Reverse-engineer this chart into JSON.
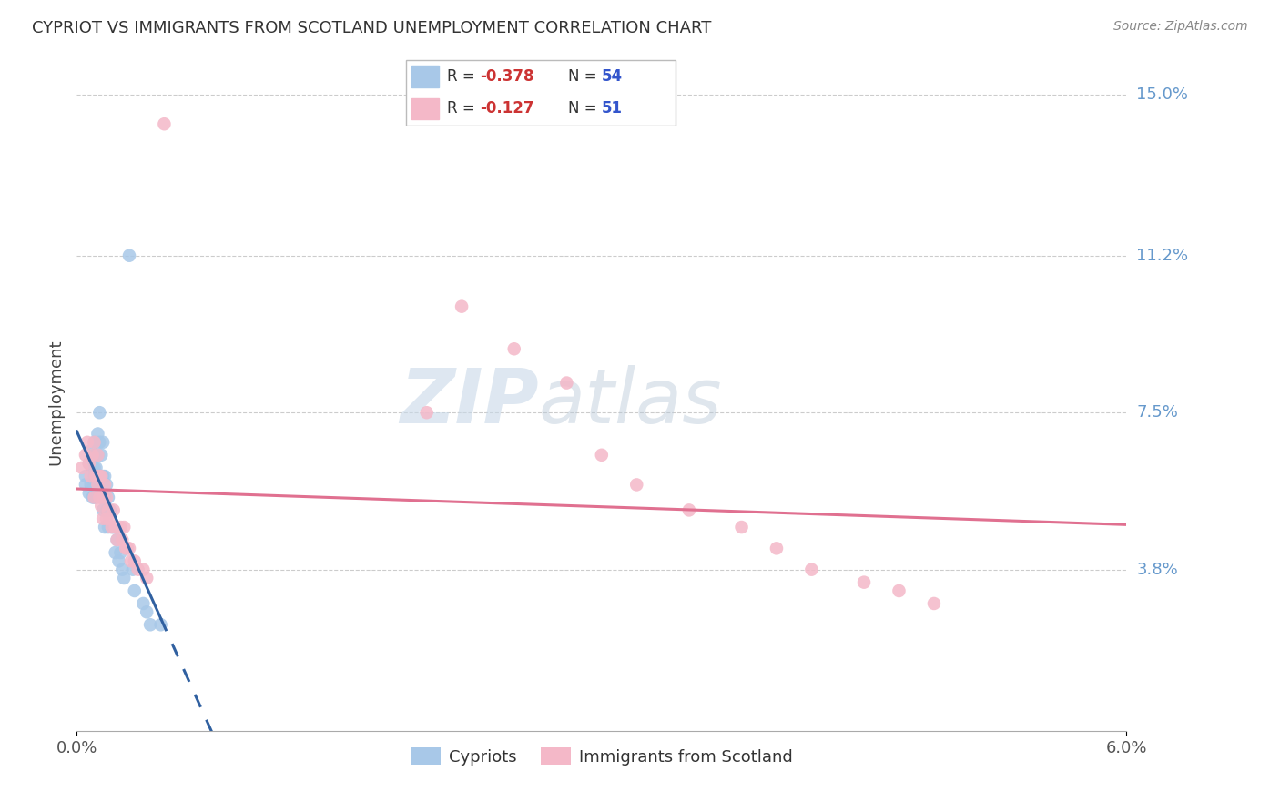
{
  "title": "CYPRIOT VS IMMIGRANTS FROM SCOTLAND UNEMPLOYMENT CORRELATION CHART",
  "source": "Source: ZipAtlas.com",
  "ylabel": "Unemployment",
  "xlim": [
    0.0,
    0.06
  ],
  "ylim": [
    0.0,
    0.155
  ],
  "ytick_labels_right": [
    "3.8%",
    "7.5%",
    "11.2%",
    "15.0%"
  ],
  "ytick_vals_right": [
    0.038,
    0.075,
    0.112,
    0.15
  ],
  "legend_r1": "-0.378",
  "legend_n1": "54",
  "legend_r2": "-0.127",
  "legend_n2": "51",
  "color_cypriot": "#a8c8e8",
  "color_scotland": "#f4b8c8",
  "color_line_cypriot": "#3060a0",
  "color_line_scotland": "#e07090",
  "watermark_zip": "ZIP",
  "watermark_atlas": "atlas",
  "cypriot_x": [
    0.0005,
    0.0005,
    0.0007,
    0.0007,
    0.0008,
    0.0008,
    0.0009,
    0.0009,
    0.001,
    0.001,
    0.001,
    0.001,
    0.001,
    0.001,
    0.0011,
    0.0011,
    0.0011,
    0.0011,
    0.0012,
    0.0012,
    0.0012,
    0.0012,
    0.0013,
    0.0013,
    0.0013,
    0.0014,
    0.0014,
    0.0014,
    0.0015,
    0.0015,
    0.0015,
    0.0016,
    0.0016,
    0.0016,
    0.0017,
    0.0017,
    0.0018,
    0.0018,
    0.0019,
    0.002,
    0.0021,
    0.0022,
    0.0023,
    0.0024,
    0.0025,
    0.0026,
    0.0027,
    0.003,
    0.0032,
    0.0033,
    0.0038,
    0.004,
    0.0042,
    0.0048
  ],
  "cypriot_y": [
    0.06,
    0.058,
    0.063,
    0.056,
    0.066,
    0.058,
    0.062,
    0.055,
    0.068,
    0.065,
    0.062,
    0.06,
    0.058,
    0.055,
    0.065,
    0.062,
    0.06,
    0.055,
    0.07,
    0.065,
    0.06,
    0.058,
    0.075,
    0.068,
    0.06,
    0.065,
    0.06,
    0.055,
    0.068,
    0.06,
    0.052,
    0.06,
    0.055,
    0.048,
    0.058,
    0.052,
    0.055,
    0.048,
    0.052,
    0.048,
    0.048,
    0.042,
    0.045,
    0.04,
    0.042,
    0.038,
    0.036,
    0.112,
    0.038,
    0.033,
    0.03,
    0.028,
    0.025,
    0.025
  ],
  "scotland_x": [
    0.0003,
    0.0005,
    0.0006,
    0.0007,
    0.0008,
    0.0009,
    0.001,
    0.001,
    0.0011,
    0.0012,
    0.0012,
    0.0013,
    0.0013,
    0.0014,
    0.0014,
    0.0015,
    0.0015,
    0.0016,
    0.0017,
    0.0017,
    0.0018,
    0.0019,
    0.002,
    0.0021,
    0.0022,
    0.0023,
    0.0025,
    0.0026,
    0.0027,
    0.0028,
    0.0029,
    0.003,
    0.0031,
    0.0033,
    0.0035,
    0.0038,
    0.004,
    0.02,
    0.022,
    0.025,
    0.028,
    0.03,
    0.032,
    0.035,
    0.038,
    0.04,
    0.042,
    0.045,
    0.047,
    0.049,
    0.005
  ],
  "scotland_y": [
    0.062,
    0.065,
    0.068,
    0.063,
    0.06,
    0.065,
    0.068,
    0.055,
    0.06,
    0.065,
    0.058,
    0.06,
    0.055,
    0.06,
    0.053,
    0.055,
    0.05,
    0.058,
    0.055,
    0.05,
    0.052,
    0.05,
    0.048,
    0.052,
    0.048,
    0.045,
    0.048,
    0.045,
    0.048,
    0.043,
    0.043,
    0.043,
    0.04,
    0.04,
    0.038,
    0.038,
    0.036,
    0.075,
    0.1,
    0.09,
    0.082,
    0.065,
    0.058,
    0.052,
    0.048,
    0.043,
    0.038,
    0.035,
    0.033,
    0.03,
    0.143
  ]
}
